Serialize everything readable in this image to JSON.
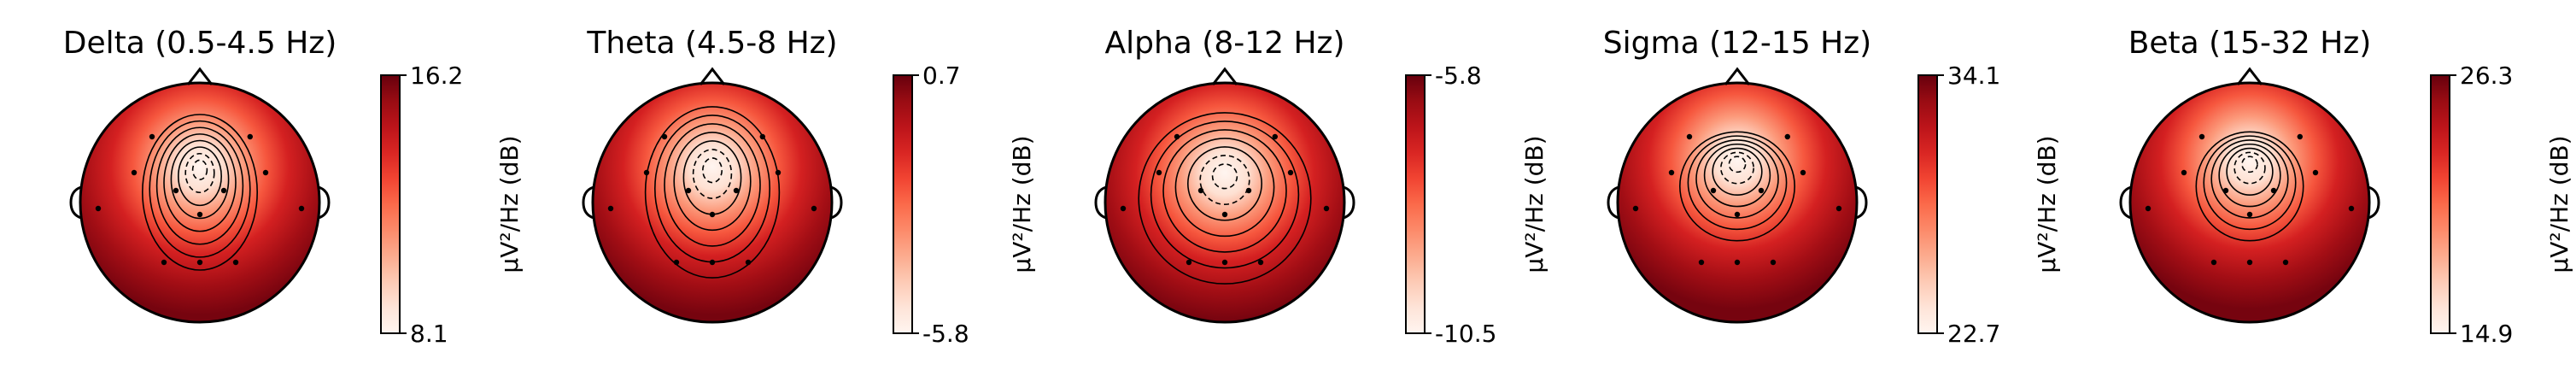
{
  "chart_data": [
    {
      "type": "heatmap",
      "title": "Delta (0.5-4.5 Hz)",
      "colorbar": {
        "label": "µV²/Hz (dB)",
        "max": 16.2,
        "min": 8.1,
        "colormap": "Reds"
      },
      "hotspot": {
        "x": 0.0,
        "y": 0.3,
        "sx": 0.3,
        "sy": 0.5
      },
      "contour_levels": 8
    },
    {
      "type": "heatmap",
      "title": "Theta (4.5-8 Hz)",
      "colorbar": {
        "label": "µV²/Hz (dB)",
        "max": 0.7,
        "min": -5.8,
        "colormap": "Reds"
      },
      "hotspot": {
        "x": 0.0,
        "y": 0.3,
        "sx": 0.35,
        "sy": 0.55
      },
      "contour_levels": 7
    },
    {
      "type": "heatmap",
      "title": "Alpha (8-12 Hz)",
      "colorbar": {
        "label": "µV²/Hz (dB)",
        "max": -5.8,
        "min": -10.5,
        "colormap": "Reds"
      },
      "hotspot": {
        "x": 0.0,
        "y": 0.25,
        "sx": 0.45,
        "sy": 0.55
      },
      "contour_levels": 7
    },
    {
      "type": "heatmap",
      "title": "Sigma (12-15 Hz)",
      "colorbar": {
        "label": "µV²/Hz (dB)",
        "max": 34.1,
        "min": 22.7,
        "colormap": "Reds"
      },
      "hotspot": {
        "x": 0.0,
        "y": 0.35,
        "sx": 0.3,
        "sy": 0.35
      },
      "contour_levels": 7
    },
    {
      "type": "heatmap",
      "title": "Beta (15-32 Hz)",
      "colorbar": {
        "label": "µV²/Hz (dB)",
        "max": 26.3,
        "min": 14.9,
        "colormap": "Reds"
      },
      "hotspot": {
        "x": 0.0,
        "y": 0.35,
        "sx": 0.28,
        "sy": 0.35
      },
      "contour_levels": 7
    }
  ],
  "sensor_layout": [
    [
      -0.4,
      0.55
    ],
    [
      0.42,
      0.55
    ],
    [
      -0.55,
      0.25
    ],
    [
      0.55,
      0.25
    ],
    [
      -0.85,
      -0.05
    ],
    [
      0.85,
      -0.05
    ],
    [
      -0.2,
      0.1
    ],
    [
      0.2,
      0.1
    ],
    [
      0.0,
      -0.1
    ],
    [
      -0.3,
      -0.5
    ],
    [
      0.0,
      -0.5
    ],
    [
      0.3,
      -0.5
    ]
  ]
}
